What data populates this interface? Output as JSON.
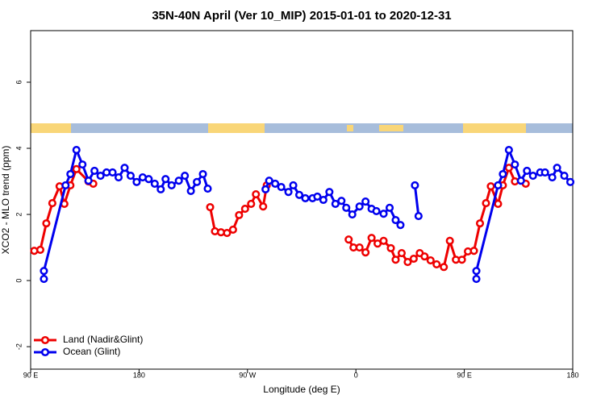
{
  "chart_data": {
    "type": "line",
    "title": "35N-40N April (Ver 10_MIP)   2015-01-01 to 2020-12-31",
    "x_label": "Longitude (deg E)",
    "y_label": "XCO2 - MLO trend (ppm)",
    "xlim": [
      90,
      540
    ],
    "ylim": [
      -2.68,
      7.56
    ],
    "xticks": [
      {
        "value": 90,
        "label": "90 E"
      },
      {
        "value": 180,
        "label": "180"
      },
      {
        "value": 270,
        "label": "90 W"
      },
      {
        "value": 360,
        "label": "0"
      },
      {
        "value": 450,
        "label": "90 E"
      },
      {
        "value": 540,
        "label": "180"
      }
    ],
    "yticks": [
      -2,
      0,
      2,
      4,
      6
    ],
    "legend": "bottom-left",
    "series": [
      {
        "name": "Land (Nadir&Glint)",
        "color": "#ee0000",
        "x": [
          93,
          98,
          103,
          108,
          114,
          118,
          123,
          128,
          138,
          142,
          null,
          239,
          243,
          248,
          253,
          258,
          263,
          268,
          273,
          277,
          283,
          286,
          null,
          354,
          358,
          363,
          368,
          373,
          378,
          383,
          389,
          393,
          398,
          403,
          408,
          413,
          417,
          422,
          427,
          433,
          438,
          443,
          448,
          453,
          458,
          463,
          468,
          472,
          478,
          482,
          487,
          492,
          501
        ],
        "values": [
          0.9,
          0.93,
          1.73,
          2.34,
          2.85,
          2.32,
          2.88,
          3.37,
          3.0,
          2.93,
          null,
          2.22,
          1.49,
          1.46,
          1.44,
          1.54,
          1.98,
          2.17,
          2.32,
          2.61,
          2.24,
          2.88,
          null,
          1.24,
          1.0,
          1.0,
          0.85,
          1.29,
          1.12,
          1.2,
          0.98,
          0.63,
          0.83,
          0.56,
          0.66,
          0.83,
          0.73,
          0.61,
          0.49,
          0.41,
          1.2,
          0.63,
          0.63,
          0.88,
          0.9,
          1.73,
          2.34,
          2.85,
          2.32,
          2.88,
          3.41,
          3.0,
          2.93
        ]
      },
      {
        "name": "Ocean (Glint)",
        "color": "#0000ee",
        "x": [
          101,
          101,
          119,
          123,
          128,
          133,
          138,
          143,
          148,
          153,
          158,
          163,
          168,
          173,
          178,
          183,
          188,
          193,
          198,
          202,
          207,
          213,
          218,
          223,
          228,
          233,
          237,
          null,
          285,
          288,
          293,
          298,
          304,
          308,
          313,
          318,
          324,
          328,
          333,
          338,
          343,
          348,
          352,
          357,
          363,
          368,
          373,
          377,
          383,
          388,
          393,
          397,
          null,
          409,
          412,
          null,
          460,
          460,
          478,
          482,
          487,
          492,
          497,
          502,
          507,
          513,
          517,
          523,
          527,
          533,
          538
        ],
        "values": [
          0.05,
          0.29,
          2.88,
          3.22,
          3.95,
          3.51,
          3.02,
          3.32,
          3.17,
          3.27,
          3.27,
          3.12,
          3.41,
          3.17,
          2.98,
          3.12,
          3.07,
          2.93,
          2.76,
          3.07,
          2.88,
          3.02,
          3.17,
          2.71,
          2.98,
          3.22,
          2.78,
          null,
          2.76,
          3.02,
          2.93,
          2.83,
          2.68,
          2.88,
          2.59,
          2.49,
          2.49,
          2.54,
          2.44,
          2.68,
          2.32,
          2.41,
          2.2,
          2.0,
          2.24,
          2.39,
          2.17,
          2.1,
          2.02,
          2.2,
          1.83,
          1.68,
          null,
          2.88,
          1.95,
          null,
          0.05,
          0.29,
          2.88,
          3.22,
          3.95,
          3.51,
          3.02,
          3.32,
          3.17,
          3.27,
          3.27,
          3.12,
          3.41,
          3.17,
          2.98
        ]
      }
    ]
  }
}
